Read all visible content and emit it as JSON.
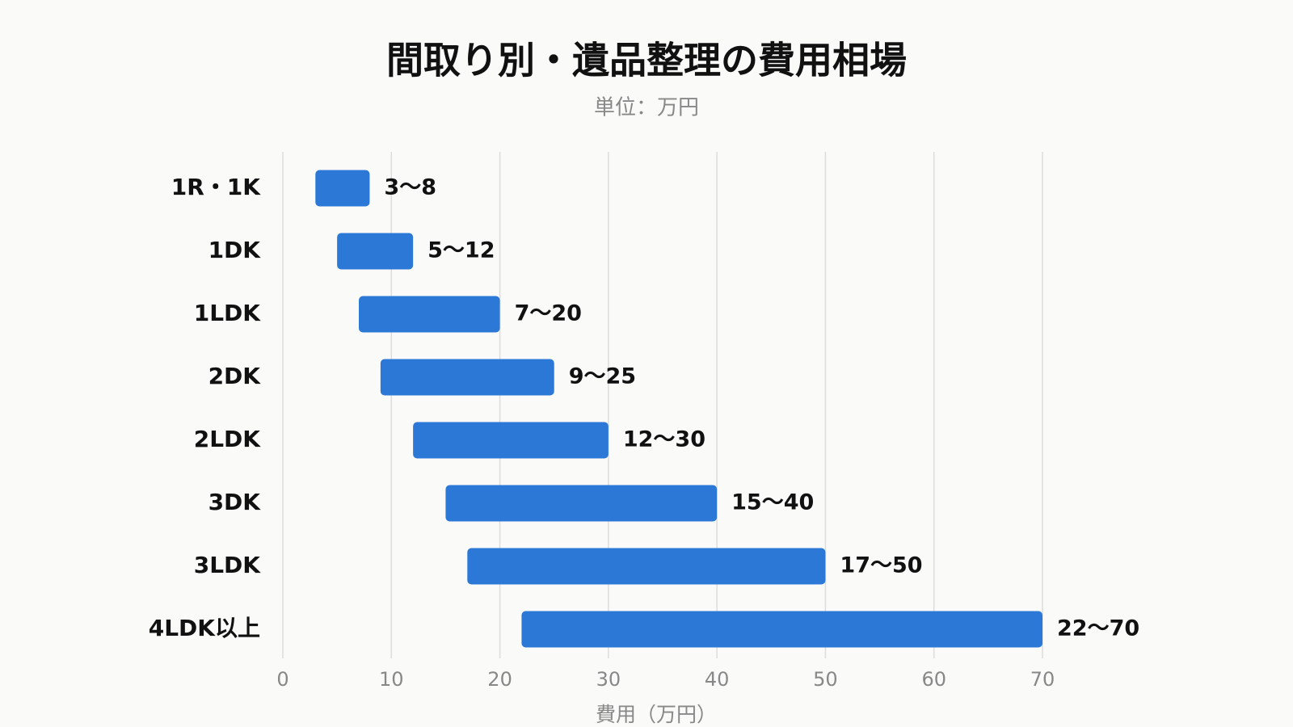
{
  "chart_data": {
    "type": "bar",
    "orientation": "horizontal",
    "title": "間取り別・遺品整理の費用相場",
    "subtitle": "単位：万円",
    "x_label": "費用（万円）",
    "categories": [
      "1R・1K",
      "1DK",
      "1LDK",
      "2DK",
      "2LDK",
      "3DK",
      "3LDK",
      "4LDK以上"
    ],
    "low": [
      3,
      5,
      7,
      9,
      12,
      15,
      17,
      22
    ],
    "high": [
      8,
      12,
      20,
      25,
      30,
      40,
      50,
      70
    ],
    "value_labels": [
      "3〜8",
      "5〜12",
      "7〜20",
      "9〜25",
      "12〜30",
      "15〜40",
      "17〜50",
      "22〜70"
    ],
    "color": "#2b78d6",
    "xlim": [
      0,
      70
    ],
    "xticks": [
      0,
      10,
      20,
      30,
      40,
      50,
      60,
      70
    ],
    "grid": true
  }
}
